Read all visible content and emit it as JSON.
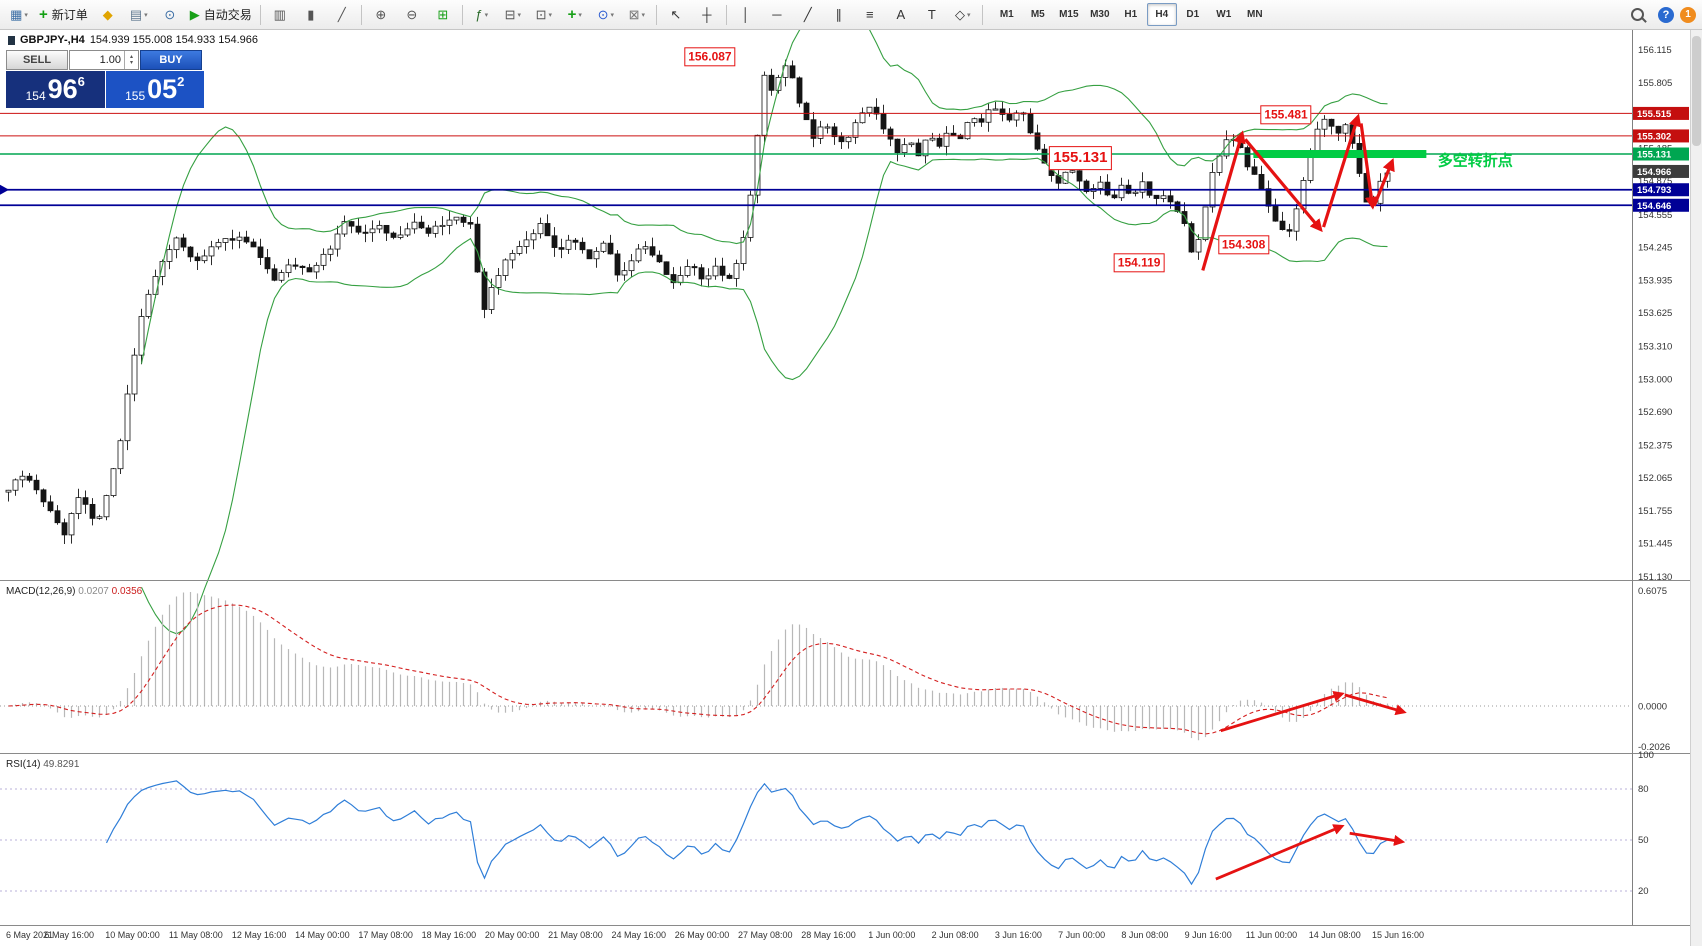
{
  "toolbar": {
    "dropdown_glyph": "▾",
    "help_label": "?",
    "notification_count": "1",
    "buttons": [
      {
        "name": "chart-window-button",
        "glyph": "▦",
        "color": "#3b6ea5",
        "dd": true
      },
      {
        "name": "new-order-button",
        "glyph": "+",
        "color": "#14a014",
        "label": "新订单"
      },
      {
        "name": "metaeditor-button",
        "glyph": "◆",
        "color": "#e0a400"
      },
      {
        "name": "chart-profiles-button",
        "glyph": "▤",
        "color": "#607890",
        "dd": true
      },
      {
        "name": "data-window-button",
        "glyph": "⊙",
        "color": "#3b6ea5"
      },
      {
        "name": "autotrade-button",
        "glyph": "▶",
        "color": "#18a018",
        "label": "自动交易"
      },
      {
        "sep": true
      },
      {
        "name": "bar-chart-button",
        "glyph": "▥",
        "color": "#555"
      },
      {
        "name": "candlestick-chart-button",
        "glyph": "▮",
        "color": "#555"
      },
      {
        "name": "line-chart-button",
        "glyph": "╱",
        "color": "#555"
      },
      {
        "sep": true
      },
      {
        "name": "zoom-in-button",
        "glyph": "⊕",
        "color": "#555"
      },
      {
        "name": "zoom-out-button",
        "glyph": "⊖",
        "color": "#555"
      },
      {
        "name": "tile-windows-button",
        "glyph": "⊞",
        "color": "#18a018"
      },
      {
        "sep": true
      },
      {
        "name": "indicators-button",
        "glyph": "ƒ",
        "color": "#2a6a2a",
        "dd": true
      },
      {
        "name": "objects-list-button",
        "glyph": "⊟",
        "color": "#555",
        "dd": true
      },
      {
        "name": "templates-button",
        "glyph": "⊡",
        "color": "#555",
        "dd": true
      },
      {
        "name": "add-indicator-button",
        "glyph": "+",
        "color": "#18a018",
        "dd": true
      },
      {
        "name": "periods-button",
        "glyph": "⊙",
        "color": "#2a5ad0",
        "dd": true
      },
      {
        "name": "mail-button",
        "glyph": "⊠",
        "color": "#777",
        "dd": true
      },
      {
        "sep": true
      },
      {
        "name": "cursor-button",
        "glyph": "↖",
        "color": "#333"
      },
      {
        "name": "crosshair-button",
        "glyph": "┼",
        "color": "#333"
      },
      {
        "sep": true
      },
      {
        "name": "vertical-line-button",
        "glyph": "│",
        "color": "#333"
      },
      {
        "name": "horizontal-line-button",
        "glyph": "─",
        "color": "#333"
      },
      {
        "name": "trendline-button",
        "glyph": "╱",
        "color": "#333"
      },
      {
        "name": "channel-button",
        "glyph": "∥",
        "color": "#333"
      },
      {
        "name": "fibonacci-button",
        "glyph": "≡",
        "color": "#333"
      },
      {
        "name": "text-button",
        "glyph": "A",
        "color": "#333"
      },
      {
        "name": "label-button",
        "glyph": "T",
        "color": "#333"
      },
      {
        "name": "shapes-button",
        "glyph": "◇",
        "color": "#333",
        "dd": true
      },
      {
        "sep": true
      }
    ],
    "timeframes": [
      "M1",
      "M5",
      "M15",
      "M30",
      "H1",
      "H4",
      "D1",
      "W1",
      "MN"
    ],
    "active_timeframe": "H4"
  },
  "chart_header": {
    "symbol": "GBPJPY-,H4",
    "ohlc": "154.939 155.008 154.933 154.966"
  },
  "trade_panel": {
    "sell_label": "SELL",
    "buy_label": "BUY",
    "lot": "1.00",
    "spin_up": "▴",
    "spin_down": "▾",
    "sell_price": {
      "prefix": "154",
      "big": "96",
      "sup": "6"
    },
    "buy_price": {
      "prefix": "155",
      "big": "05",
      "sup": "2"
    }
  },
  "indicators": {
    "macd": {
      "name": "MACD(12,26,9)",
      "value_main": "0.0207",
      "value_signal": "0.0356",
      "axis": {
        "top": "0.6075",
        "zero": "0.0000",
        "bottom": "-0.2026"
      }
    },
    "rsi": {
      "name": "RSI(14)",
      "value": "49.8291",
      "levels": [
        80,
        50,
        20
      ],
      "axis_labels": [
        {
          "label": "100",
          "v": 100
        },
        {
          "label": "80",
          "v": 80
        },
        {
          "label": "50",
          "v": 50
        },
        {
          "label": "20",
          "v": 20
        }
      ]
    }
  },
  "chart_data": {
    "type": "candlestick",
    "symbol": "GBPJPY",
    "timeframe": "H4",
    "price_axis": {
      "ticks": [
        "156.115",
        "155.805",
        "155.495",
        "155.185",
        "154.875",
        "154.555",
        "154.245",
        "153.935",
        "153.625",
        "153.310",
        "153.000",
        "152.690",
        "152.375",
        "152.065",
        "151.755",
        "151.445",
        "151.130"
      ],
      "tags": [
        {
          "label": "155.515",
          "price": 155.515,
          "color": "#c40f0f"
        },
        {
          "label": "155.302",
          "price": 155.302,
          "color": "#c40f0f"
        },
        {
          "label": "155.131",
          "price": 155.131,
          "color": "#00a651"
        },
        {
          "label": "154.966",
          "price": 154.966,
          "color": "#3c3c3c"
        },
        {
          "label": "154.793",
          "price": 154.793,
          "color": "#000096"
        },
        {
          "label": "154.646",
          "price": 154.646,
          "color": "#000096"
        }
      ]
    },
    "hlines": [
      {
        "price": 155.515,
        "color": "#cc1111",
        "width": 1
      },
      {
        "price": 155.302,
        "color": "#cc1111",
        "width": 1
      },
      {
        "price": 155.131,
        "color": "#00a651",
        "width": 1.4
      },
      {
        "price": 154.793,
        "color": "#000096",
        "width": 1.8
      },
      {
        "price": 154.646,
        "color": "#000096",
        "width": 1.8
      }
    ],
    "bollinger": {
      "period": 20,
      "deviation": 2
    },
    "highlight_bar": {
      "x1": 0.768,
      "x2": 0.874,
      "price": 155.131,
      "color": "#00cc44"
    },
    "pivot_label": {
      "text": "多空转折点",
      "x": 0.881,
      "price": 155.07,
      "color": "#00cc44"
    },
    "annotations": [
      {
        "text": "156.087",
        "x": 0.435,
        "price": 156.05
      },
      {
        "text": "155.481",
        "x": 0.788,
        "price": 155.5
      },
      {
        "text": "155.131",
        "x": 0.662,
        "price": 155.09,
        "size": 15
      },
      {
        "text": "154.119",
        "x": 0.698,
        "price": 154.1
      },
      {
        "text": "154.308",
        "x": 0.762,
        "price": 154.27
      }
    ],
    "arrows": {
      "main": [
        {
          "pts": [
            [
              0.737,
              154.03
            ],
            [
              0.761,
              155.32
            ]
          ]
        },
        {
          "pts": [
            [
              0.763,
              155.27
            ],
            [
              0.809,
              154.42
            ]
          ]
        },
        {
          "pts": [
            [
              0.811,
              154.44
            ],
            [
              0.832,
              155.48
            ]
          ]
        },
        {
          "pts": [
            [
              0.834,
              155.42
            ],
            [
              0.841,
              154.64
            ]
          ]
        },
        {
          "pts": [
            [
              0.842,
              154.64
            ],
            [
              0.853,
              155.06
            ]
          ]
        }
      ],
      "macd": [
        {
          "pts": [
            [
              0.748,
              0.87
            ],
            [
              0.822,
              0.655
            ]
          ]
        },
        {
          "pts": [
            [
              0.824,
              0.66
            ],
            [
              0.86,
              0.76
            ]
          ]
        }
      ],
      "rsi": [
        {
          "pts": [
            [
              0.745,
              27
            ],
            [
              0.822,
              58
            ]
          ]
        },
        {
          "pts": [
            [
              0.827,
              54
            ],
            [
              0.859,
              49
            ]
          ]
        }
      ]
    },
    "price_path": [
      [
        0,
        151.95
      ],
      [
        18,
        152.1
      ],
      [
        40,
        151.8
      ],
      [
        55,
        151.55
      ],
      [
        70,
        151.9
      ],
      [
        85,
        151.6
      ],
      [
        98,
        152.0
      ],
      [
        108,
        152.45
      ],
      [
        118,
        153.1
      ],
      [
        130,
        153.7
      ],
      [
        145,
        154.05
      ],
      [
        160,
        154.35
      ],
      [
        180,
        154.1
      ],
      [
        205,
        154.35
      ],
      [
        230,
        154.3
      ],
      [
        252,
        153.95
      ],
      [
        268,
        154.1
      ],
      [
        288,
        154.0
      ],
      [
        305,
        154.25
      ],
      [
        320,
        154.5
      ],
      [
        335,
        154.35
      ],
      [
        352,
        154.45
      ],
      [
        368,
        154.3
      ],
      [
        382,
        154.5
      ],
      [
        398,
        154.4
      ],
      [
        412,
        154.48
      ],
      [
        428,
        154.52
      ],
      [
        440,
        154.42
      ],
      [
        448,
        153.6
      ],
      [
        458,
        153.9
      ],
      [
        472,
        154.15
      ],
      [
        488,
        154.3
      ],
      [
        503,
        154.45
      ],
      [
        518,
        154.2
      ],
      [
        533,
        154.32
      ],
      [
        548,
        154.15
      ],
      [
        563,
        154.3
      ],
      [
        578,
        153.95
      ],
      [
        598,
        154.3
      ],
      [
        613,
        154.15
      ],
      [
        628,
        153.9
      ],
      [
        643,
        154.1
      ],
      [
        655,
        153.95
      ],
      [
        668,
        154.05
      ],
      [
        680,
        153.95
      ],
      [
        690,
        154.15
      ],
      [
        698,
        154.55
      ],
      [
        706,
        155.2
      ],
      [
        714,
        155.9
      ],
      [
        722,
        155.7
      ],
      [
        731,
        156.0
      ],
      [
        740,
        155.85
      ],
      [
        750,
        155.5
      ],
      [
        760,
        155.3
      ],
      [
        770,
        155.45
      ],
      [
        780,
        155.28
      ],
      [
        790,
        155.2
      ],
      [
        800,
        155.45
      ],
      [
        810,
        155.6
      ],
      [
        820,
        155.5
      ],
      [
        830,
        155.3
      ],
      [
        840,
        155.15
      ],
      [
        850,
        155.28
      ],
      [
        858,
        155.1
      ],
      [
        868,
        155.3
      ],
      [
        878,
        155.2
      ],
      [
        888,
        155.35
      ],
      [
        898,
        155.28
      ],
      [
        908,
        155.5
      ],
      [
        918,
        155.45
      ],
      [
        928,
        155.62
      ],
      [
        938,
        155.5
      ],
      [
        946,
        155.45
      ],
      [
        954,
        155.58
      ],
      [
        962,
        155.4
      ],
      [
        970,
        155.2
      ],
      [
        980,
        155.0
      ],
      [
        990,
        154.85
      ],
      [
        1000,
        155.0
      ],
      [
        1010,
        154.9
      ],
      [
        1020,
        154.75
      ],
      [
        1030,
        154.85
      ],
      [
        1040,
        154.7
      ],
      [
        1050,
        154.82
      ],
      [
        1060,
        154.75
      ],
      [
        1070,
        154.85
      ],
      [
        1080,
        154.7
      ],
      [
        1090,
        154.75
      ],
      [
        1100,
        154.6
      ],
      [
        1110,
        154.45
      ],
      [
        1118,
        154.12
      ],
      [
        1126,
        154.5
      ],
      [
        1134,
        154.9
      ],
      [
        1142,
        155.1
      ],
      [
        1150,
        155.28
      ],
      [
        1158,
        155.3
      ],
      [
        1166,
        155.05
      ],
      [
        1174,
        154.95
      ],
      [
        1182,
        154.8
      ],
      [
        1190,
        154.6
      ],
      [
        1198,
        154.45
      ],
      [
        1206,
        154.32
      ],
      [
        1214,
        154.6
      ],
      [
        1222,
        154.9
      ],
      [
        1230,
        155.2
      ],
      [
        1238,
        155.47
      ],
      [
        1246,
        155.4
      ],
      [
        1254,
        155.32
      ],
      [
        1262,
        155.45
      ],
      [
        1270,
        155.15
      ],
      [
        1278,
        154.68
      ],
      [
        1286,
        154.66
      ],
      [
        1294,
        154.9
      ],
      [
        1302,
        154.95
      ],
      [
        1310,
        154.966
      ]
    ],
    "time_labels": [
      "6 May 2021",
      "6 May 16:00",
      "10 May 00:00",
      "11 May 08:00",
      "12 May 16:00",
      "14 May 00:00",
      "17 May 08:00",
      "18 May 16:00",
      "20 May 00:00",
      "21 May 08:00",
      "24 May 16:00",
      "26 May 00:00",
      "27 May 08:00",
      "28 May 16:00",
      "1 Jun 00:00",
      "2 Jun 08:00",
      "3 Jun 16:00",
      "7 Jun 00:00",
      "8 Jun 08:00",
      "9 Jun 16:00",
      "11 Jun 00:00",
      "14 Jun 08:00",
      "15 Jun 16:00"
    ]
  }
}
